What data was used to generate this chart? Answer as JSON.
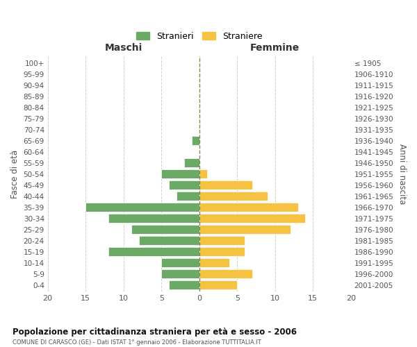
{
  "age_groups": [
    "100+",
    "95-99",
    "90-94",
    "85-89",
    "80-84",
    "75-79",
    "70-74",
    "65-69",
    "60-64",
    "55-59",
    "50-54",
    "45-49",
    "40-44",
    "35-39",
    "30-34",
    "25-29",
    "20-24",
    "15-19",
    "10-14",
    "5-9",
    "0-4"
  ],
  "birth_years": [
    "≤ 1905",
    "1906-1910",
    "1911-1915",
    "1916-1920",
    "1921-1925",
    "1926-1930",
    "1931-1935",
    "1936-1940",
    "1941-1945",
    "1946-1950",
    "1951-1955",
    "1956-1960",
    "1961-1965",
    "1966-1970",
    "1971-1975",
    "1976-1980",
    "1981-1985",
    "1986-1990",
    "1991-1995",
    "1996-2000",
    "2001-2005"
  ],
  "maschi": [
    0,
    0,
    0,
    0,
    0,
    0,
    0,
    1,
    0,
    2,
    5,
    4,
    3,
    15,
    12,
    9,
    8,
    12,
    5,
    5,
    4
  ],
  "femmine": [
    0,
    0,
    0,
    0,
    0,
    0,
    0,
    0,
    0,
    0,
    1,
    7,
    9,
    13,
    14,
    12,
    6,
    6,
    4,
    7,
    5
  ],
  "color_maschi": "#6aaa64",
  "color_femmine": "#f5c242",
  "title": "Popolazione per cittadinanza straniera per età e sesso - 2006",
  "subtitle": "COMUNE DI CARASCO (GE) - Dati ISTAT 1° gennaio 2006 - Elaborazione TUTTITALIA.IT",
  "ylabel_left": "Fasce di età",
  "ylabel_right": "Anni di nascita",
  "label_maschi": "Maschi",
  "label_femmine": "Femmine",
  "legend_maschi": "Stranieri",
  "legend_femmine": "Straniere",
  "xlim": 20,
  "background_color": "#ffffff",
  "grid_color": "#cccccc"
}
